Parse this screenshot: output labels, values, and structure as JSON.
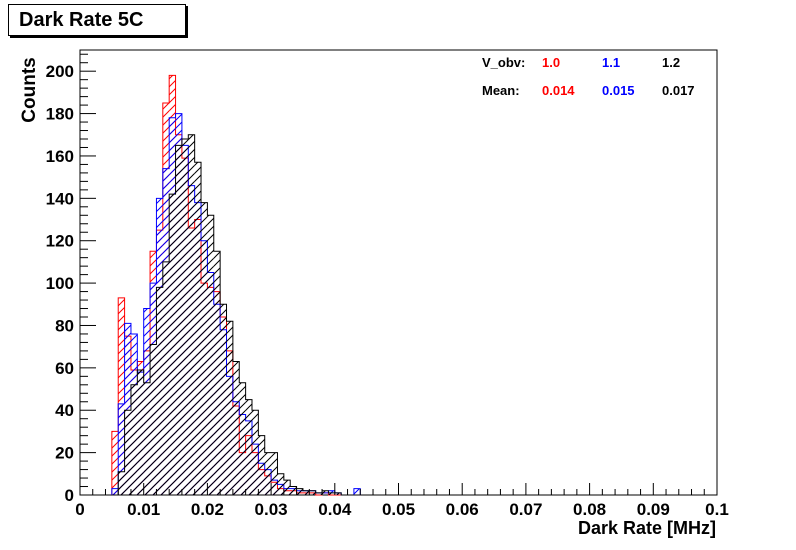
{
  "chart_data": {
    "type": "histogram",
    "title": "Dark Rate 5C",
    "xlabel": "Dark Rate [MHz]",
    "ylabel": "Counts",
    "xlim": [
      0,
      0.1
    ],
    "ylim": [
      0,
      210
    ],
    "xticks": [
      "0",
      "0.01",
      "0.02",
      "0.03",
      "0.04",
      "0.05",
      "0.06",
      "0.07",
      "0.08",
      "0.09",
      "0.1"
    ],
    "xtick_values": [
      0,
      0.01,
      0.02,
      0.03,
      0.04,
      0.05,
      0.06,
      0.07,
      0.08,
      0.09,
      0.1
    ],
    "yticks": [
      "0",
      "20",
      "40",
      "60",
      "80",
      "100",
      "120",
      "140",
      "160",
      "180",
      "200"
    ],
    "ytick_values": [
      0,
      20,
      40,
      60,
      80,
      100,
      120,
      140,
      160,
      180,
      200
    ],
    "bin_width": 0.001,
    "bins_start": 0.005,
    "legend": {
      "header_label": "V_obv:",
      "mean_label": "Mean:"
    },
    "series": [
      {
        "name": "1.0",
        "mean": "0.014",
        "color": "#ff0000",
        "values": [
          30,
          93,
          75,
          59,
          63,
          68,
          115,
          125,
          185,
          198,
          170,
          159,
          126,
          130,
          100,
          98,
          96,
          84,
          68,
          42,
          20,
          28,
          20,
          12,
          9,
          6,
          3,
          2,
          2,
          1,
          1,
          1,
          0,
          1,
          0,
          0,
          0,
          0,
          0
        ]
      },
      {
        "name": "1.1",
        "mean": "0.015",
        "color": "#0000ff",
        "values": [
          3,
          43,
          81,
          76,
          58,
          88,
          100,
          140,
          154,
          178,
          180,
          165,
          146,
          138,
          120,
          105,
          90,
          78,
          56,
          44,
          38,
          35,
          24,
          15,
          12,
          7,
          5,
          3,
          3,
          2,
          2,
          2,
          1,
          1,
          2,
          1,
          0,
          0,
          3
        ]
      },
      {
        "name": "1.2",
        "mean": "0.017",
        "color": "#000000",
        "values": [
          0,
          11,
          40,
          52,
          59,
          53,
          71,
          98,
          110,
          142,
          165,
          168,
          170,
          157,
          138,
          132,
          115,
          90,
          82,
          63,
          53,
          45,
          40,
          28,
          20,
          20,
          10,
          7,
          4,
          3,
          2,
          2,
          1,
          2,
          1,
          1,
          0,
          0,
          0
        ]
      }
    ]
  }
}
